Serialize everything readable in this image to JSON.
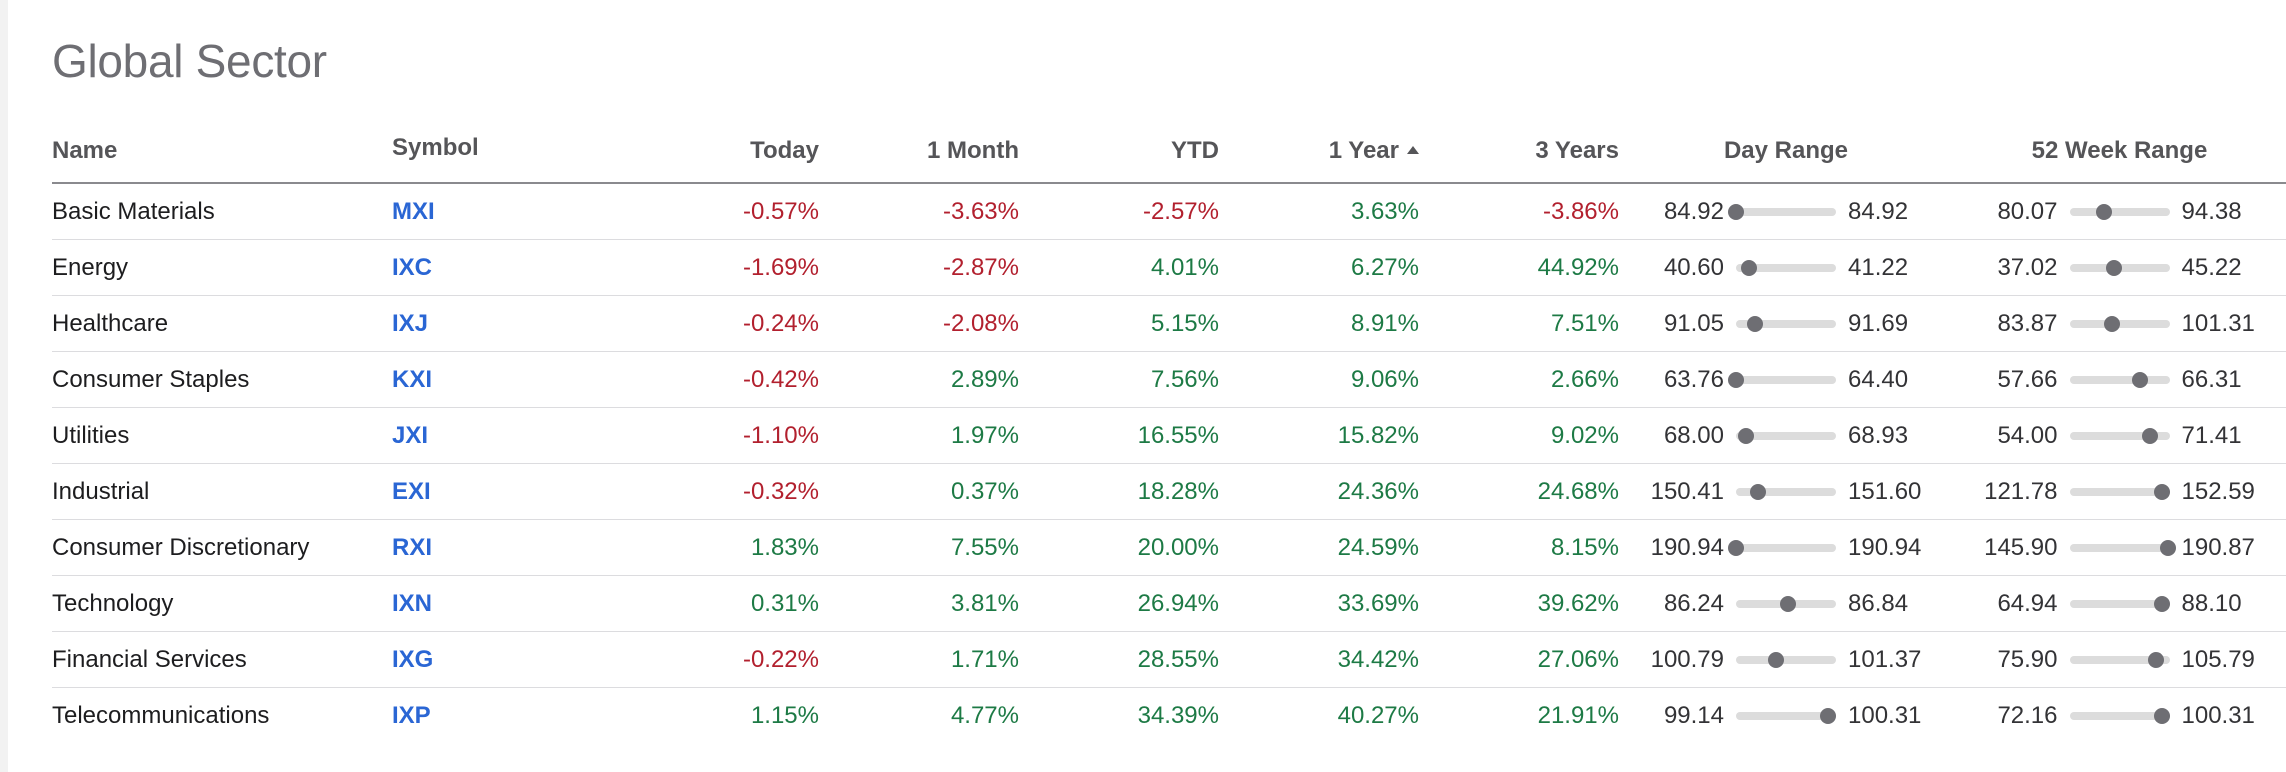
{
  "title": "Global Sector",
  "columns": {
    "name": "Name",
    "symbol": "Symbol",
    "today": "Today",
    "month": "1 Month",
    "ytd": "YTD",
    "year": "1 Year",
    "three_years": "3 Years",
    "day_range": "Day Range",
    "week52_range": "52 Week Range"
  },
  "sort": {
    "column": "1 Year",
    "direction": "ascending",
    "icon": "sort-up-icon"
  },
  "colors": {
    "negative": "#b2202e",
    "positive": "#1d7a45",
    "symbol": "#2a66d4"
  },
  "rows": [
    {
      "name": "Basic Materials",
      "symbol": "MXI",
      "today": "-0.57%",
      "month": "-3.63%",
      "ytd": "-2.57%",
      "year": "3.63%",
      "three_years": "-3.86%",
      "day_low": "84.92",
      "day_high": "84.92",
      "day_pos": 0.0,
      "wk_low": "80.07",
      "wk_high": "94.38",
      "wk_pos": 0.34
    },
    {
      "name": "Energy",
      "symbol": "IXC",
      "today": "-1.69%",
      "month": "-2.87%",
      "ytd": "4.01%",
      "year": "6.27%",
      "three_years": "44.92%",
      "day_low": "40.60",
      "day_high": "41.22",
      "day_pos": 0.13,
      "wk_low": "37.02",
      "wk_high": "45.22",
      "wk_pos": 0.44
    },
    {
      "name": "Healthcare",
      "symbol": "IXJ",
      "today": "-0.24%",
      "month": "-2.08%",
      "ytd": "5.15%",
      "year": "8.91%",
      "three_years": "7.51%",
      "day_low": "91.05",
      "day_high": "91.69",
      "day_pos": 0.19,
      "wk_low": "83.87",
      "wk_high": "101.31",
      "wk_pos": 0.42
    },
    {
      "name": "Consumer Staples",
      "symbol": "KXI",
      "today": "-0.42%",
      "month": "2.89%",
      "ytd": "7.56%",
      "year": "9.06%",
      "three_years": "2.66%",
      "day_low": "63.76",
      "day_high": "64.40",
      "day_pos": 0.0,
      "wk_low": "57.66",
      "wk_high": "66.31",
      "wk_pos": 0.7
    },
    {
      "name": "Utilities",
      "symbol": "JXI",
      "today": "-1.10%",
      "month": "1.97%",
      "ytd": "16.55%",
      "year": "15.82%",
      "three_years": "9.02%",
      "day_low": "68.00",
      "day_high": "68.93",
      "day_pos": 0.1,
      "wk_low": "54.00",
      "wk_high": "71.41",
      "wk_pos": 0.8
    },
    {
      "name": "Industrial",
      "symbol": "EXI",
      "today": "-0.32%",
      "month": "0.37%",
      "ytd": "18.28%",
      "year": "24.36%",
      "three_years": "24.68%",
      "day_low": "150.41",
      "day_high": "151.60",
      "day_pos": 0.22,
      "wk_low": "121.78",
      "wk_high": "152.59",
      "wk_pos": 0.92
    },
    {
      "name": "Consumer Discretionary",
      "symbol": "RXI",
      "today": "1.83%",
      "month": "7.55%",
      "ytd": "20.00%",
      "year": "24.59%",
      "three_years": "8.15%",
      "day_low": "190.94",
      "day_high": "190.94",
      "day_pos": 0.0,
      "wk_low": "145.90",
      "wk_high": "190.87",
      "wk_pos": 0.98
    },
    {
      "name": "Technology",
      "symbol": "IXN",
      "today": "0.31%",
      "month": "3.81%",
      "ytd": "26.94%",
      "year": "33.69%",
      "three_years": "39.62%",
      "day_low": "86.24",
      "day_high": "86.84",
      "day_pos": 0.52,
      "wk_low": "64.94",
      "wk_high": "88.10",
      "wk_pos": 0.92
    },
    {
      "name": "Financial Services",
      "symbol": "IXG",
      "today": "-0.22%",
      "month": "1.71%",
      "ytd": "28.55%",
      "year": "34.42%",
      "three_years": "27.06%",
      "day_low": "100.79",
      "day_high": "101.37",
      "day_pos": 0.4,
      "wk_low": "75.90",
      "wk_high": "105.79",
      "wk_pos": 0.86
    },
    {
      "name": "Telecommunications",
      "symbol": "IXP",
      "today": "1.15%",
      "month": "4.77%",
      "ytd": "34.39%",
      "year": "40.27%",
      "three_years": "21.91%",
      "day_low": "99.14",
      "day_high": "100.31",
      "day_pos": 0.92,
      "wk_low": "72.16",
      "wk_high": "100.31",
      "wk_pos": 0.92
    }
  ]
}
